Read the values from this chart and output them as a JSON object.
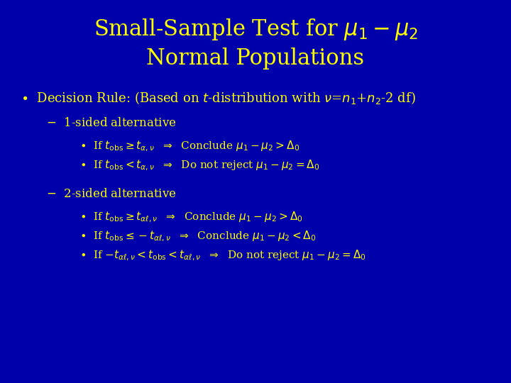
{
  "background_color": "#0000aa",
  "title_color": "#ffff00",
  "body_color": "#ffff00",
  "title_fontsize": 22,
  "body_fontsize": 13,
  "sub_fontsize": 12,
  "subsub_fontsize": 11
}
